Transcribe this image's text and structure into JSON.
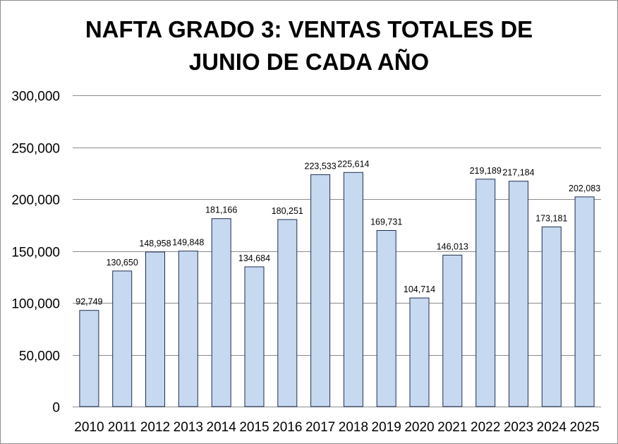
{
  "title_lines": [
    "NAFTA GRADO 3: VENTAS TOTALES DE",
    "JUNIO DE CADA AÑO"
  ],
  "colors": {
    "bar_fill": "#c6d9f1",
    "bar_stroke": "#1f2d4d",
    "grid": "#8c8c8c",
    "text": "#000000"
  },
  "chart_data": {
    "type": "bar",
    "title": "NAFTA GRADO 3: VENTAS TOTALES DE JUNIO DE CADA AÑO",
    "xlabel": "",
    "ylabel": "",
    "categories": [
      "2010",
      "2011",
      "2012",
      "2013",
      "2014",
      "2015",
      "2016",
      "2017",
      "2018",
      "2019",
      "2020",
      "2021",
      "2022",
      "2023",
      "2024",
      "2025"
    ],
    "values": [
      92749,
      130650,
      148958,
      149848,
      181166,
      134684,
      180251,
      223533,
      225614,
      169731,
      104714,
      146013,
      219189,
      217184,
      173181,
      202083
    ],
    "data_labels": [
      "92,749",
      "130,650",
      "148,958",
      "149,848",
      "181,166",
      "134,684",
      "180,251",
      "223,533",
      "225,614",
      "169,731",
      "104,714",
      "146,013",
      "219,189",
      "217,184",
      "173,181",
      "202,083"
    ],
    "ylim": [
      0,
      300000
    ],
    "yticks": [
      0,
      50000,
      100000,
      150000,
      200000,
      250000,
      300000
    ],
    "ytick_labels": [
      "0",
      "50,000",
      "100,000",
      "150,000",
      "200,000",
      "250,000",
      "300,000"
    ],
    "grid": true,
    "legend": "none"
  }
}
